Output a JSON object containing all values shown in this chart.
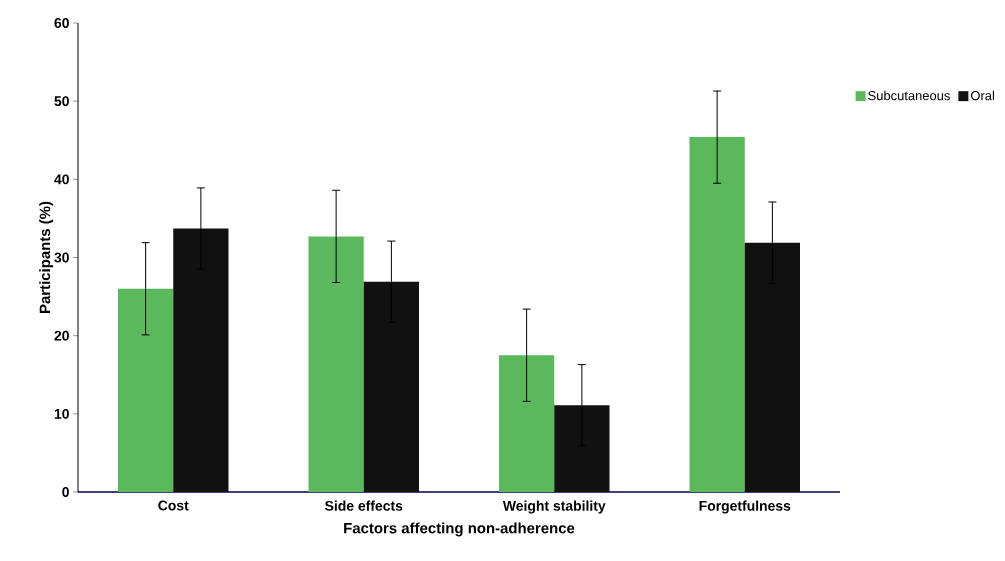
{
  "chart_data": {
    "type": "bar",
    "xlabel": "Factors affecting non-adherence",
    "ylabel": "Participants (%)",
    "categories": [
      "Cost",
      "Side effects",
      "Weight stability",
      "Forgetfulness"
    ],
    "series": [
      {
        "name": "Subcutaneous",
        "color": "#5cb85c",
        "values": [
          26.0,
          32.7,
          17.5,
          45.4
        ],
        "errors": [
          5.9,
          5.9,
          5.9,
          5.9
        ]
      },
      {
        "name": "Oral",
        "color": "#111111",
        "values": [
          33.7,
          26.9,
          11.1,
          31.9
        ],
        "errors": [
          5.2,
          5.2,
          5.2,
          5.2
        ]
      }
    ],
    "ylim": [
      0,
      60
    ],
    "yticks": [
      0,
      10,
      20,
      30,
      40,
      50,
      60
    ],
    "legend": "top right"
  }
}
